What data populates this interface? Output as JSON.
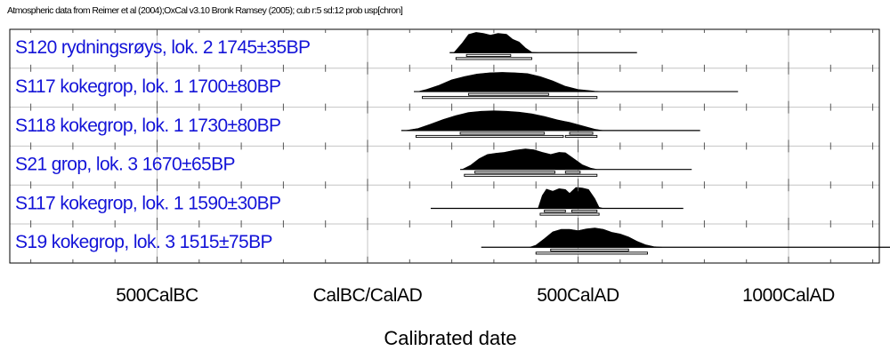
{
  "header": "Atmospheric data from Reimer et al (2004);OxCal v3.10 Bronk Ramsey (2005); cub r:5 sd:12 prob usp[chron]",
  "chart_data": {
    "type": "area",
    "title": "",
    "xlabel": "Calibrated date",
    "ylabel": "",
    "xlim": [
      -900,
      1400
    ],
    "x_ticks": [
      {
        "value": -500,
        "label": "500CalBC"
      },
      {
        "value": 0,
        "label": "CalBC/CalAD"
      },
      {
        "value": 500,
        "label": "500CalAD"
      },
      {
        "value": 1000,
        "label": "1000CalAD"
      }
    ],
    "grid": true,
    "series": [
      {
        "name": "S120 rydningsrøys, lok. 2  1745±35BP",
        "range": [
          195,
          640
        ],
        "density": [
          [
            205,
            0
          ],
          [
            225,
            0.45
          ],
          [
            240,
            0.85
          ],
          [
            258,
            0.95
          ],
          [
            275,
            0.9
          ],
          [
            292,
            0.82
          ],
          [
            310,
            0.9
          ],
          [
            330,
            0.86
          ],
          [
            345,
            0.62
          ],
          [
            360,
            0.5
          ],
          [
            375,
            0.22
          ],
          [
            390,
            0.02
          ],
          [
            405,
            0
          ]
        ],
        "range_bars": [
          [
            {
              "from": 235,
              "to": 340
            }
          ],
          [
            {
              "from": 210,
              "to": 390
            }
          ]
        ]
      },
      {
        "name": "S117 kokegrop, lok. 1  1700±80BP",
        "range": [
          110,
          880
        ],
        "density": [
          [
            120,
            0
          ],
          [
            140,
            0.1
          ],
          [
            170,
            0.3
          ],
          [
            200,
            0.55
          ],
          [
            230,
            0.7
          ],
          [
            260,
            0.82
          ],
          [
            290,
            0.88
          ],
          [
            320,
            0.9
          ],
          [
            350,
            0.88
          ],
          [
            380,
            0.84
          ],
          [
            410,
            0.7
          ],
          [
            440,
            0.5
          ],
          [
            470,
            0.25
          ],
          [
            500,
            0.1
          ],
          [
            540,
            0.02
          ],
          [
            560,
            0
          ]
        ],
        "range_bars": [
          [
            {
              "from": 240,
              "to": 430
            }
          ],
          [
            {
              "from": 130,
              "to": 545
            }
          ]
        ]
      },
      {
        "name": "S118 kokegrop, lok. 1  1730±80BP",
        "range": [
          80,
          790
        ],
        "density": [
          [
            90,
            0
          ],
          [
            120,
            0.1
          ],
          [
            150,
            0.3
          ],
          [
            180,
            0.52
          ],
          [
            210,
            0.7
          ],
          [
            240,
            0.84
          ],
          [
            270,
            0.9
          ],
          [
            300,
            0.92
          ],
          [
            330,
            0.9
          ],
          [
            360,
            0.86
          ],
          [
            390,
            0.78
          ],
          [
            420,
            0.66
          ],
          [
            450,
            0.5
          ],
          [
            480,
            0.38
          ],
          [
            510,
            0.22
          ],
          [
            540,
            0.06
          ],
          [
            560,
            0
          ]
        ],
        "range_bars": [
          [
            {
              "from": 220,
              "to": 420
            },
            {
              "from": 480,
              "to": 535
            }
          ],
          [
            {
              "from": 115,
              "to": 465
            },
            {
              "from": 470,
              "to": 545
            }
          ]
        ]
      },
      {
        "name": "S21 grop, lok. 3  1670±65BP",
        "range": [
          220,
          770
        ],
        "density": [
          [
            225,
            0
          ],
          [
            245,
            0.2
          ],
          [
            265,
            0.5
          ],
          [
            285,
            0.7
          ],
          [
            305,
            0.76
          ],
          [
            325,
            0.8
          ],
          [
            350,
            0.9
          ],
          [
            375,
            0.96
          ],
          [
            395,
            0.92
          ],
          [
            415,
            0.8
          ],
          [
            435,
            0.7
          ],
          [
            455,
            0.8
          ],
          [
            470,
            0.78
          ],
          [
            490,
            0.5
          ],
          [
            510,
            0.22
          ],
          [
            530,
            0.06
          ],
          [
            545,
            0
          ]
        ],
        "range_bars": [
          [
            {
              "from": 255,
              "to": 445
            },
            {
              "from": 470,
              "to": 505
            }
          ],
          [
            {
              "from": 230,
              "to": 545
            }
          ]
        ]
      },
      {
        "name": "S117 kokegrop, lok. 1  1590±30BP",
        "range": [
          150,
          750
        ],
        "density": [
          [
            405,
            0
          ],
          [
            415,
            0.6
          ],
          [
            425,
            0.9
          ],
          [
            440,
            0.8
          ],
          [
            455,
            0.92
          ],
          [
            470,
            0.88
          ],
          [
            480,
            0.7
          ],
          [
            495,
            0.98
          ],
          [
            510,
            0.95
          ],
          [
            525,
            0.88
          ],
          [
            540,
            0.45
          ],
          [
            550,
            0.05
          ],
          [
            560,
            0
          ]
        ],
        "range_bars": [
          [
            {
              "from": 420,
              "to": 470
            },
            {
              "from": 485,
              "to": 545
            }
          ],
          [
            {
              "from": 410,
              "to": 550
            }
          ]
        ]
      },
      {
        "name": "S19 kokegrop, lok. 3  1515±75BP",
        "range": [
          270,
          1285
        ],
        "density": [
          [
            385,
            0
          ],
          [
            400,
            0.1
          ],
          [
            420,
            0.4
          ],
          [
            440,
            0.72
          ],
          [
            460,
            0.84
          ],
          [
            480,
            0.84
          ],
          [
            500,
            0.78
          ],
          [
            520,
            0.86
          ],
          [
            540,
            0.9
          ],
          [
            560,
            0.84
          ],
          [
            580,
            0.7
          ],
          [
            600,
            0.62
          ],
          [
            620,
            0.48
          ],
          [
            640,
            0.28
          ],
          [
            660,
            0.12
          ],
          [
            680,
            0.03
          ],
          [
            700,
            0
          ]
        ],
        "range_bars": [
          [
            {
              "from": 435,
              "to": 620
            }
          ],
          [
            {
              "from": 400,
              "to": 665
            }
          ]
        ]
      }
    ]
  }
}
